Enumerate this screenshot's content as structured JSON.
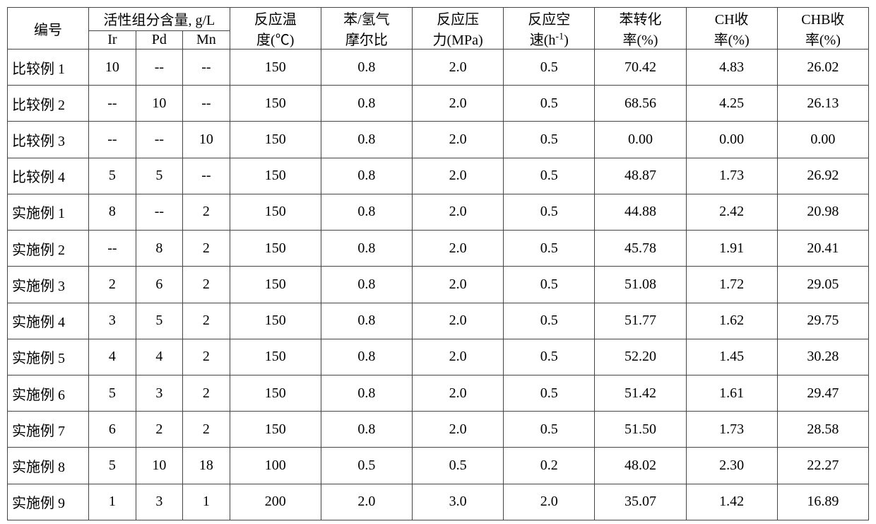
{
  "headers": {
    "id": "编号",
    "active_group": "活性组分含量, g/L",
    "ir": "Ir",
    "pd": "Pd",
    "mn": "Mn",
    "temp_l1": "反应温",
    "temp_l2": "度(℃)",
    "ratio_l1": "苯/氢气",
    "ratio_l2": "摩尔比",
    "pressure_l1": "反应压",
    "pressure_l2": "力(MPa)",
    "space_l1": "反应空",
    "space_l2_pre": "速(h",
    "space_l2_sup": "-1",
    "space_l2_post": ")",
    "conv_l1": "苯转化",
    "conv_l2": "率(%)",
    "ch_l1": "CH收",
    "ch_l2": "率(%)",
    "chb_l1": "CHB收",
    "chb_l2": "率(%)"
  },
  "rows": [
    {
      "id": "比较例 1",
      "ir": "10",
      "pd": "--",
      "mn": "--",
      "temp": "150",
      "ratio": "0.8",
      "pressure": "2.0",
      "space": "0.5",
      "conv": "70.42",
      "ch": "4.83",
      "chb": "26.02"
    },
    {
      "id": "比较例 2",
      "ir": "--",
      "pd": "10",
      "mn": "--",
      "temp": "150",
      "ratio": "0.8",
      "pressure": "2.0",
      "space": "0.5",
      "conv": "68.56",
      "ch": "4.25",
      "chb": "26.13"
    },
    {
      "id": "比较例 3",
      "ir": "--",
      "pd": "--",
      "mn": "10",
      "temp": "150",
      "ratio": "0.8",
      "pressure": "2.0",
      "space": "0.5",
      "conv": "0.00",
      "ch": "0.00",
      "chb": "0.00"
    },
    {
      "id": "比较例 4",
      "ir": "5",
      "pd": "5",
      "mn": "--",
      "temp": "150",
      "ratio": "0.8",
      "pressure": "2.0",
      "space": "0.5",
      "conv": "48.87",
      "ch": "1.73",
      "chb": "26.92"
    },
    {
      "id": "实施例 1",
      "ir": "8",
      "pd": "--",
      "mn": "2",
      "temp": "150",
      "ratio": "0.8",
      "pressure": "2.0",
      "space": "0.5",
      "conv": "44.88",
      "ch": "2.42",
      "chb": "20.98"
    },
    {
      "id": "实施例 2",
      "ir": "--",
      "pd": "8",
      "mn": "2",
      "temp": "150",
      "ratio": "0.8",
      "pressure": "2.0",
      "space": "0.5",
      "conv": "45.78",
      "ch": "1.91",
      "chb": "20.41"
    },
    {
      "id": "实施例 3",
      "ir": "2",
      "pd": "6",
      "mn": "2",
      "temp": "150",
      "ratio": "0.8",
      "pressure": "2.0",
      "space": "0.5",
      "conv": "51.08",
      "ch": "1.72",
      "chb": "29.05"
    },
    {
      "id": "实施例 4",
      "ir": "3",
      "pd": "5",
      "mn": "2",
      "temp": "150",
      "ratio": "0.8",
      "pressure": "2.0",
      "space": "0.5",
      "conv": "51.77",
      "ch": "1.62",
      "chb": "29.75"
    },
    {
      "id": "实施例 5",
      "ir": "4",
      "pd": "4",
      "mn": "2",
      "temp": "150",
      "ratio": "0.8",
      "pressure": "2.0",
      "space": "0.5",
      "conv": "52.20",
      "ch": "1.45",
      "chb": "30.28"
    },
    {
      "id": "实施例 6",
      "ir": "5",
      "pd": "3",
      "mn": "2",
      "temp": "150",
      "ratio": "0.8",
      "pressure": "2.0",
      "space": "0.5",
      "conv": "51.42",
      "ch": "1.61",
      "chb": "29.47"
    },
    {
      "id": "实施例 7",
      "ir": "6",
      "pd": "2",
      "mn": "2",
      "temp": "150",
      "ratio": "0.8",
      "pressure": "2.0",
      "space": "0.5",
      "conv": "51.50",
      "ch": "1.73",
      "chb": "28.58"
    },
    {
      "id": "实施例 8",
      "ir": "5",
      "pd": "10",
      "mn": "18",
      "temp": "100",
      "ratio": "0.5",
      "pressure": "0.5",
      "space": "0.2",
      "conv": "48.02",
      "ch": "2.30",
      "chb": "22.27"
    },
    {
      "id": "实施例 9",
      "ir": "1",
      "pd": "3",
      "mn": "1",
      "temp": "200",
      "ratio": "2.0",
      "pressure": "3.0",
      "space": "2.0",
      "conv": "35.07",
      "ch": "1.42",
      "chb": "16.89"
    }
  ],
  "style": {
    "type": "table",
    "columns": [
      "编号",
      "Ir",
      "Pd",
      "Mn",
      "反应温度(℃)",
      "苯/氢气摩尔比",
      "反应压力(MPa)",
      "反应空速(h-1)",
      "苯转化率(%)",
      "CH收率(%)",
      "CHB收率(%)"
    ],
    "background_color": "#ffffff",
    "border_color": "#444444",
    "text_color": "#000000",
    "font_family": "SimSun / Times New Roman",
    "font_size_pt": 15,
    "header_rows": 2,
    "body_rows": 13,
    "col_align": [
      "left",
      "center",
      "center",
      "center",
      "center",
      "center",
      "center",
      "center",
      "center",
      "center",
      "center"
    ]
  }
}
